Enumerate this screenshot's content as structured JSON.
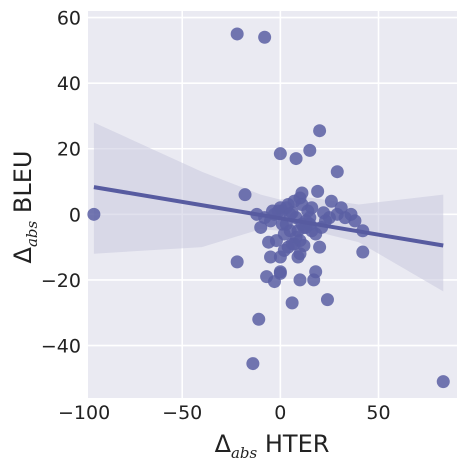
{
  "chart_data": {
    "type": "scatter",
    "xlabel": {
      "symbol": "Δ",
      "subscript": "abs",
      "text": " HTER"
    },
    "ylabel": {
      "symbol": "Δ",
      "subscript": "abs",
      "text": " BLEU"
    },
    "xlim": [
      -98,
      90
    ],
    "ylim": [
      -56,
      62
    ],
    "xticks": [
      -100,
      -50,
      0,
      50
    ],
    "yticks": [
      -40,
      -20,
      0,
      20,
      40,
      60
    ],
    "xtick_labels": [
      "−100",
      "−50",
      "0",
      "50"
    ],
    "ytick_labels": [
      "−40",
      "−20",
      "0",
      "20",
      "40",
      "60"
    ],
    "grid": true,
    "colors": {
      "background": "#EAEAF2",
      "grid": "#FFFFFF",
      "points": "#5A5FA3",
      "line": "#575BA0",
      "band": "#C9C9DE"
    },
    "regression": {
      "x": [
        -95,
        83
      ],
      "y": [
        8.3,
        -9.5
      ],
      "ci_upper": [
        -95,
        28,
        -40,
        13,
        -10,
        6,
        0,
        4.5,
        10,
        5.5,
        40,
        3,
        83,
        6
      ],
      "ci_lower": [
        -95,
        -12,
        -40,
        -10,
        -10,
        -4.5,
        0,
        -5,
        10,
        -4,
        40,
        -8.5,
        83,
        -23.5
      ]
    },
    "points": {
      "x": [
        -95,
        -22,
        -8,
        -18,
        20,
        0,
        8,
        15,
        29,
        -22,
        83,
        -14,
        -11,
        42,
        -3,
        6,
        24,
        17,
        10,
        -7,
        0,
        0,
        -5,
        10,
        20,
        33,
        38,
        26,
        11,
        19,
        -10,
        3,
        -5,
        -2,
        6,
        8,
        12,
        16,
        18,
        22,
        25,
        29,
        31,
        36,
        42,
        -8,
        -4,
        0,
        4,
        7,
        10,
        14,
        15,
        21,
        23,
        -6,
        2,
        5,
        9,
        13,
        -3,
        1,
        3,
        6,
        8,
        11,
        13,
        0,
        2,
        4,
        7,
        10,
        12,
        15,
        18,
        9,
        -1,
        1,
        5,
        11,
        16,
        -12
      ],
      "y": [
        0,
        55,
        54,
        6,
        25.5,
        18.5,
        17,
        19.5,
        13,
        -14.5,
        -51,
        -45.5,
        -32,
        -11.5,
        -20.5,
        -27,
        -26,
        -20,
        -20,
        -19,
        -17.5,
        -18,
        -13,
        -12,
        -10,
        -1,
        -2,
        4,
        6.5,
        7,
        -4,
        -3,
        -2,
        -8,
        -9,
        -7,
        -4,
        -5,
        -6,
        0.5,
        -1,
        0,
        2,
        0,
        -5,
        -1,
        1,
        2,
        3,
        4,
        5,
        1,
        -1,
        -4,
        -2,
        -8.5,
        -6,
        -5,
        -5,
        -4,
        0,
        1,
        2,
        0.5,
        -1,
        -3,
        -2,
        -13,
        -11,
        -10,
        -9,
        -8,
        -9.5,
        -3,
        -17.5,
        -13,
        1,
        -3,
        0,
        3,
        2,
        0
      ]
    }
  }
}
